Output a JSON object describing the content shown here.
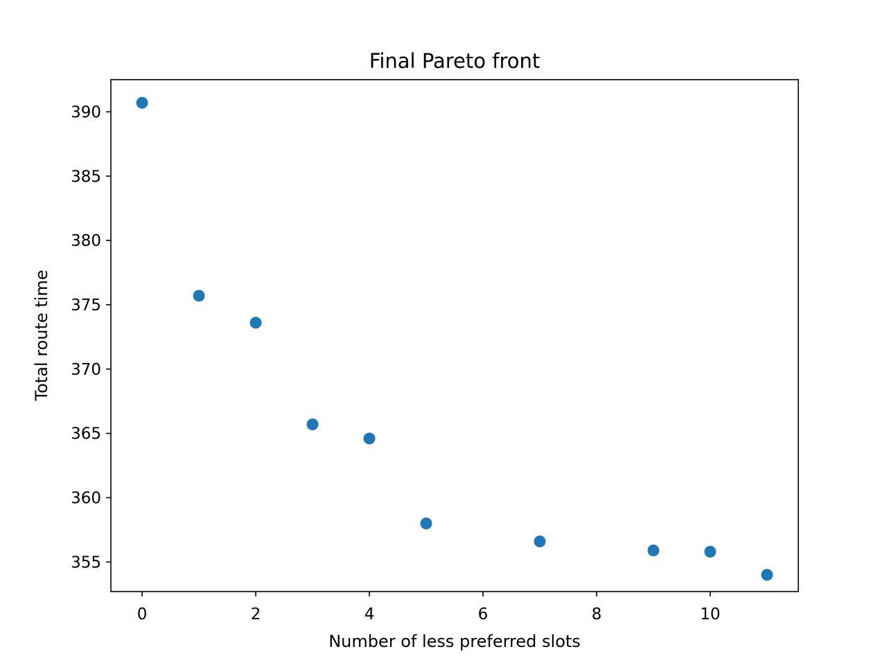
{
  "chart_data": {
    "type": "scatter",
    "title": "Final Pareto front",
    "xlabel": "Number of less preferred slots",
    "ylabel": "Total route time",
    "x": [
      0,
      1,
      2,
      3,
      4,
      5,
      7,
      9,
      10,
      11
    ],
    "y": [
      390.7,
      375.7,
      373.6,
      365.7,
      364.6,
      358.0,
      356.6,
      355.9,
      355.8,
      354.0
    ],
    "xlim": [
      -0.55,
      11.55
    ],
    "ylim": [
      352.7,
      392.5
    ],
    "xticks": [
      0,
      2,
      4,
      6,
      8,
      10
    ],
    "yticks": [
      355,
      360,
      365,
      370,
      375,
      380,
      385,
      390
    ],
    "grid": false,
    "legend": "none",
    "marker_color": "#1f77b4"
  }
}
